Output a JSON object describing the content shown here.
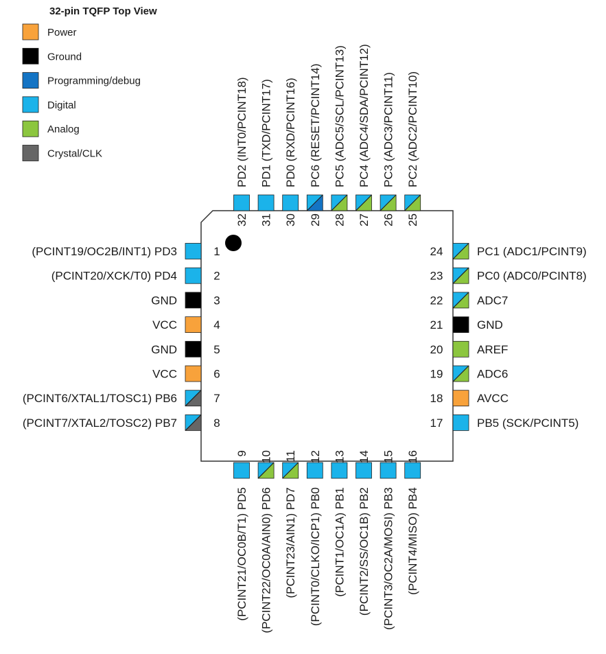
{
  "title": "32-pin TQFP Top View",
  "colors": {
    "power": "#f8a23b",
    "ground": "#000000",
    "programming": "#1474c4",
    "digital": "#1bb3ea",
    "analog": "#8cc63f",
    "crystal": "#666666"
  },
  "legend": [
    {
      "type": "power",
      "label": "Power"
    },
    {
      "type": "ground",
      "label": "Ground"
    },
    {
      "type": "programming",
      "label": "Programming/debug"
    },
    {
      "type": "digital",
      "label": "Digital"
    },
    {
      "type": "analog",
      "label": "Analog"
    },
    {
      "type": "crystal",
      "label": "Crystal/CLK"
    }
  ],
  "pins": [
    {
      "num": "1",
      "side": "left",
      "label": "(PCINT19/OC2B/INT1) PD3",
      "colors": [
        "digital"
      ]
    },
    {
      "num": "2",
      "side": "left",
      "label": "(PCINT20/XCK/T0) PD4",
      "colors": [
        "digital"
      ]
    },
    {
      "num": "3",
      "side": "left",
      "label": "GND",
      "colors": [
        "ground"
      ]
    },
    {
      "num": "4",
      "side": "left",
      "label": "VCC",
      "colors": [
        "power"
      ]
    },
    {
      "num": "5",
      "side": "left",
      "label": "GND",
      "colors": [
        "ground"
      ]
    },
    {
      "num": "6",
      "side": "left",
      "label": "VCC",
      "colors": [
        "power"
      ]
    },
    {
      "num": "7",
      "side": "left",
      "label": "(PCINT6/XTAL1/TOSC1) PB6",
      "colors": [
        "digital",
        "crystal"
      ]
    },
    {
      "num": "8",
      "side": "left",
      "label": "(PCINT7/XTAL2/TOSC2) PB7",
      "colors": [
        "digital",
        "crystal"
      ]
    },
    {
      "num": "9",
      "side": "bottom",
      "label": "(PCINT21/OC0B/T1) PD5",
      "colors": [
        "digital"
      ]
    },
    {
      "num": "10",
      "side": "bottom",
      "label": "(PCINT22/OC0A/AIN0) PD6",
      "colors": [
        "digital",
        "analog"
      ]
    },
    {
      "num": "11",
      "side": "bottom",
      "label": "(PCINT23/AIN1) PD7",
      "colors": [
        "digital",
        "analog"
      ]
    },
    {
      "num": "12",
      "side": "bottom",
      "label": "(PCINT0/CLKO/ICP1) PB0",
      "colors": [
        "digital"
      ]
    },
    {
      "num": "13",
      "side": "bottom",
      "label": "(PCINT1/OC1A) PB1",
      "colors": [
        "digital"
      ]
    },
    {
      "num": "14",
      "side": "bottom",
      "label": "(PCINT2/SS/OC1B) PB2",
      "colors": [
        "digital"
      ]
    },
    {
      "num": "15",
      "side": "bottom",
      "label": "(PCINT3/OC2A/MOSI) PB3",
      "colors": [
        "digital"
      ]
    },
    {
      "num": "16",
      "side": "bottom",
      "label": "(PCINT4/MISO) PB4",
      "colors": [
        "digital"
      ]
    },
    {
      "num": "17",
      "side": "right",
      "label": "PB5 (SCK/PCINT5)",
      "colors": [
        "digital"
      ]
    },
    {
      "num": "18",
      "side": "right",
      "label": "AVCC",
      "colors": [
        "power"
      ]
    },
    {
      "num": "19",
      "side": "right",
      "label": "ADC6",
      "colors": [
        "digital",
        "analog"
      ]
    },
    {
      "num": "20",
      "side": "right",
      "label": "AREF",
      "colors": [
        "analog"
      ]
    },
    {
      "num": "21",
      "side": "right",
      "label": "GND",
      "colors": [
        "ground"
      ]
    },
    {
      "num": "22",
      "side": "right",
      "label": "ADC7",
      "colors": [
        "digital",
        "analog"
      ]
    },
    {
      "num": "23",
      "side": "right",
      "label": "PC0 (ADC0/PCINT8)",
      "colors": [
        "digital",
        "analog"
      ]
    },
    {
      "num": "24",
      "side": "right",
      "label": "PC1 (ADC1/PCINT9)",
      "colors": [
        "digital",
        "analog"
      ]
    },
    {
      "num": "25",
      "side": "top",
      "label": "PC2 (ADC2/PCINT10)",
      "colors": [
        "digital",
        "analog"
      ]
    },
    {
      "num": "26",
      "side": "top",
      "label": "PC3 (ADC3/PCINT11)",
      "colors": [
        "digital",
        "analog"
      ]
    },
    {
      "num": "27",
      "side": "top",
      "label": "PC4 (ADC4/SDA/PCINT12)",
      "colors": [
        "digital",
        "analog"
      ]
    },
    {
      "num": "28",
      "side": "top",
      "label": "PC5 (ADC5/SCL/PCINT13)",
      "colors": [
        "digital",
        "analog"
      ]
    },
    {
      "num": "29",
      "side": "top",
      "label": "PC6 (RESET/PCINT14)",
      "colors": [
        "digital",
        "programming"
      ]
    },
    {
      "num": "30",
      "side": "top",
      "label": "PD0 (RXD/PCINT16)",
      "colors": [
        "digital"
      ]
    },
    {
      "num": "31",
      "side": "top",
      "label": "PD1 (TXD/PCINT17)",
      "colors": [
        "digital"
      ]
    },
    {
      "num": "32",
      "side": "top",
      "label": "PD2 (INT0/PCINT18)",
      "colors": [
        "digital"
      ]
    }
  ]
}
